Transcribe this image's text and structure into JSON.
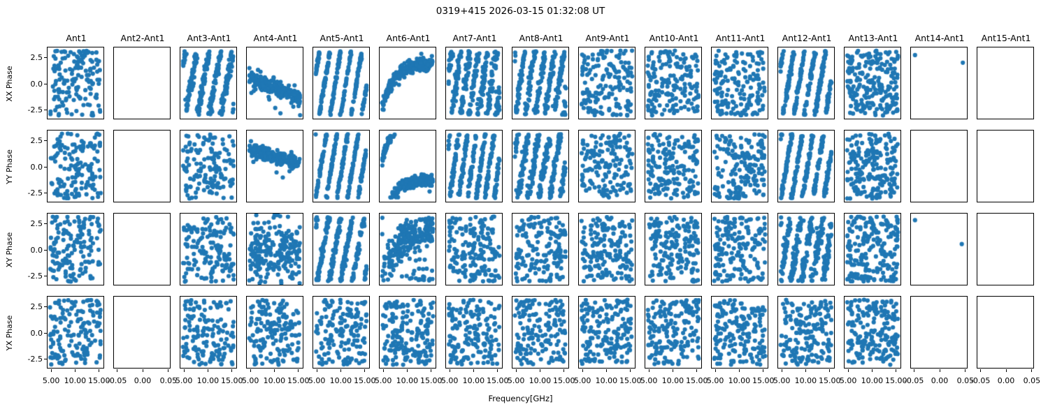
{
  "title": "0319+415 2026-03-15 01:32:08 UT",
  "xlabel": "Frequency[GHz]",
  "dot_color": "#1f77b4",
  "chart_data": {
    "type": "scatter",
    "layout": "4x15 subplot grid, shared axes, tick labels only on outer edges",
    "title": "0319+415 2026-03-15 01:32:08 UT",
    "xlabel": "Frequency[GHz]",
    "row_labels": [
      "XX Phase",
      "YY Phase",
      "XY Phase",
      "YX Phase"
    ],
    "column_labels": [
      "Ant1",
      "Ant2-Ant1",
      "Ant3-Ant1",
      "Ant4-Ant1",
      "Ant5-Ant1",
      "Ant6-Ant1",
      "Ant7-Ant1",
      "Ant8-Ant1",
      "Ant9-Ant1",
      "Ant10-Ant1",
      "Ant11-Ant1",
      "Ant12-Ant1",
      "Ant13-Ant1",
      "Ant14-Ant1",
      "Ant15-Ant1"
    ],
    "ylim": [
      -3.5,
      3.5
    ],
    "yticks": [
      "2.5",
      "0.0",
      "-2.5"
    ],
    "ytick_values": [
      2.5,
      0.0,
      -2.5
    ],
    "xticks_freq": [
      "5.00",
      "10.00",
      "15.00"
    ],
    "xtick_freq_values": [
      5.0,
      10.0,
      15.0
    ],
    "xticks_empty": [
      "-0.05",
      "0.00",
      "0.05"
    ],
    "xtick_empty_values": [
      -0.05,
      0.0,
      0.05
    ],
    "column_tick_type": [
      "freq",
      "empty",
      "freq",
      "freq",
      "freq",
      "freq",
      "freq",
      "freq",
      "freq",
      "freq",
      "freq",
      "freq",
      "freq",
      "empty",
      "empty"
    ],
    "xtick_fracs_freq": [
      0.063,
      0.48,
      0.9
    ],
    "xtick_fracs_empty": [
      0.05,
      0.5,
      0.95
    ],
    "grid": false,
    "legend": "none",
    "panels": [
      [
        {
          "p": "random",
          "n": 150
        },
        {
          "p": "empty"
        },
        {
          "p": "stripes",
          "w": 4.5,
          "noise": 0.55,
          "n": 300,
          "ph": 1.2
        },
        {
          "p": "trend",
          "y0": 0.6,
          "y1": -1.5,
          "noise": 0.35,
          "n": 230,
          "out": 6
        },
        {
          "p": "stripes",
          "w": 5,
          "noise": 0.2,
          "n": 300,
          "ph": 0.3
        },
        {
          "p": "arc",
          "lo": -2.9,
          "hi": 2.0,
          "tau": 0.22,
          "noise": 0.32,
          "n": 260,
          "shift": 0,
          "out": 0
        },
        {
          "p": "stripes",
          "w": 6,
          "noise": 0.7,
          "n": 300,
          "ph": 0.0
        },
        {
          "p": "stripes",
          "w": 5.5,
          "noise": 0.55,
          "n": 280,
          "ph": 2.0
        },
        {
          "p": "random",
          "n": 160
        },
        {
          "p": "random",
          "n": 170
        },
        {
          "p": "random",
          "n": 170
        },
        {
          "p": "stripes",
          "w": 5,
          "noise": 0.3,
          "n": 300,
          "ph": 1.0
        },
        {
          "p": "random",
          "n": 210
        },
        {
          "p": "points",
          "pts": [
            [
              0.05,
              2.75
            ],
            [
              0.95,
              2.0
            ]
          ]
        },
        {
          "p": "empty"
        }
      ],
      [
        {
          "p": "random",
          "n": 150
        },
        {
          "p": "empty"
        },
        {
          "p": "random",
          "n": 140
        },
        {
          "p": "trend",
          "y0": 1.7,
          "y1": 0.2,
          "noise": 0.3,
          "n": 230,
          "out": 4
        },
        {
          "p": "stripes",
          "w": 5,
          "noise": 0.2,
          "n": 300,
          "ph": 2.5
        },
        {
          "p": "arc",
          "lo": -2.9,
          "hi": 2.0,
          "tau": 0.22,
          "noise": 0.3,
          "n": 260,
          "shift": 3.0,
          "out": 0
        },
        {
          "p": "stripes",
          "w": 6,
          "noise": 0.35,
          "n": 300,
          "ph": 1.5
        },
        {
          "p": "stripes",
          "w": 5,
          "noise": 0.6,
          "n": 280,
          "ph": 0.8
        },
        {
          "p": "random",
          "n": 160
        },
        {
          "p": "random",
          "n": 170
        },
        {
          "p": "random",
          "n": 170
        },
        {
          "p": "stripes",
          "w": 5,
          "noise": 0.3,
          "n": 300,
          "ph": 2.2
        },
        {
          "p": "random",
          "n": 200
        },
        {
          "p": "empty"
        },
        {
          "p": "empty"
        }
      ],
      [
        {
          "p": "random",
          "n": 150
        },
        {
          "p": "empty"
        },
        {
          "p": "random",
          "n": 150
        },
        {
          "p": "gauss",
          "mu": -0.3,
          "sig": 1.4,
          "n": 210,
          "out": 25
        },
        {
          "p": "stripes",
          "w": 4.5,
          "noise": 0.4,
          "n": 280,
          "ph": 1.8
        },
        {
          "p": "arc",
          "lo": -3.0,
          "hi": 2.2,
          "tau": 0.3,
          "noise": 0.85,
          "n": 230,
          "shift": 0,
          "out": 22
        },
        {
          "p": "random",
          "n": 170
        },
        {
          "p": "random",
          "n": 160
        },
        {
          "p": "random",
          "n": 170
        },
        {
          "p": "random",
          "n": 170
        },
        {
          "p": "random",
          "n": 170
        },
        {
          "p": "stripes",
          "w": 5,
          "noise": 0.75,
          "n": 300,
          "ph": 2.8
        },
        {
          "p": "random",
          "n": 200
        },
        {
          "p": "points",
          "pts": [
            [
              0.05,
              2.85
            ],
            [
              0.93,
              0.5
            ]
          ]
        },
        {
          "p": "empty"
        }
      ],
      [
        {
          "p": "random",
          "n": 150
        },
        {
          "p": "empty"
        },
        {
          "p": "random",
          "n": 150
        },
        {
          "p": "random",
          "n": 160
        },
        {
          "p": "random",
          "n": 160
        },
        {
          "p": "random",
          "n": 180
        },
        {
          "p": "random",
          "n": 160
        },
        {
          "p": "random",
          "n": 160
        },
        {
          "p": "random",
          "n": 170
        },
        {
          "p": "random",
          "n": 170
        },
        {
          "p": "random",
          "n": 170
        },
        {
          "p": "random",
          "n": 170
        },
        {
          "p": "random",
          "n": 190
        },
        {
          "p": "empty"
        },
        {
          "p": "empty"
        }
      ]
    ]
  }
}
